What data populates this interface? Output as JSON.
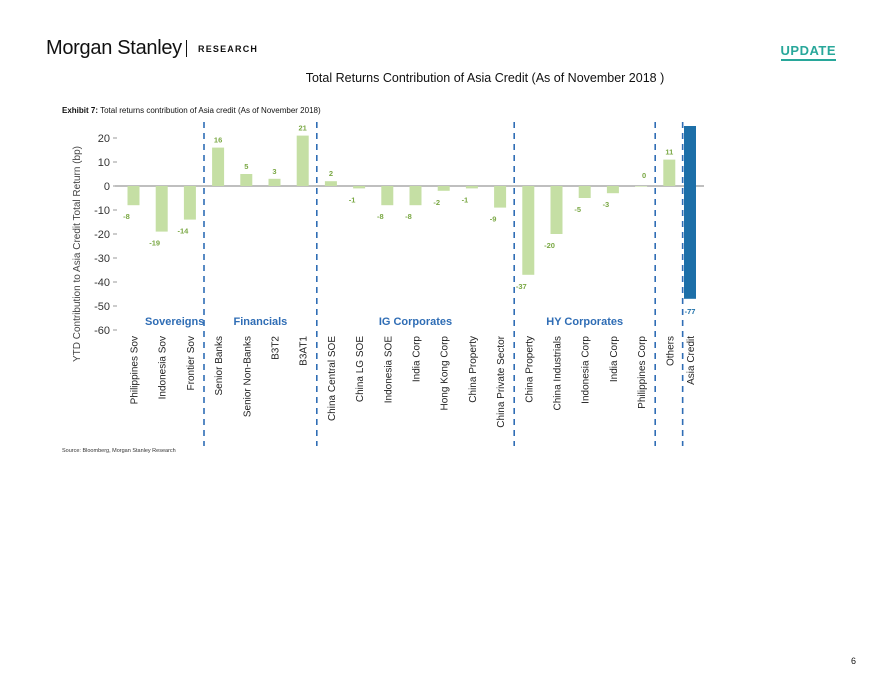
{
  "header": {
    "logo_text": "Morgan Stanley",
    "research_label": "RESEARCH",
    "update_badge": "UPDATE",
    "accent_color": "#28a79a"
  },
  "page_heading": "Total Returns Contribution of Asia Credit (As of November 2018 )",
  "exhibit": {
    "label": "Exhibit 7:",
    "title": "Total returns contribution of Asia credit (As of November 2018)"
  },
  "source": "Source: Bloomberg, Morgan Stanley Research",
  "page_number": "6",
  "chart_data": {
    "type": "bar",
    "ylabel": "YTD Contribution to Asia Credit Total Return (bp)",
    "ylim": [
      -60,
      25
    ],
    "yticks": [
      20,
      10,
      0,
      -10,
      -20,
      -30,
      -40,
      -50,
      -60
    ],
    "categories": [
      "Philippines Sov",
      "Indonesia Sov",
      "Frontier Sov",
      "Senior Banks",
      "Senior Non-Banks",
      "B3T2",
      "B3AT1",
      "China Central SOE",
      "China LG SOE",
      "Indonesia SOE",
      "India Corp",
      "Hong Kong Corp",
      "China Property",
      "China Private Sector",
      "China Property",
      "China Industrials",
      "Indonesia Corp",
      "India Corp",
      "Philippines Corp",
      "Others",
      "Asia Credit"
    ],
    "values": [
      -8,
      -19,
      -14,
      16,
      5,
      3,
      21,
      2,
      -1,
      -8,
      -8,
      -2,
      -1,
      -9,
      -37,
      -20,
      -5,
      -3,
      0,
      11,
      -77
    ],
    "data_labels": [
      "-8",
      "-19",
      "-14",
      "16",
      "5",
      "3",
      "21",
      "2",
      "-1",
      "-8",
      "-8",
      "-2",
      "-1",
      "-9",
      "-37",
      "-20",
      "-5",
      "-3",
      "0",
      "11",
      "-77"
    ],
    "groups": [
      {
        "name": "Sovereigns",
        "start": 0,
        "end": 2
      },
      {
        "name": "Financials",
        "start": 3,
        "end": 6
      },
      {
        "name": "IG Corporates",
        "start": 7,
        "end": 13
      },
      {
        "name": "HY Corporates",
        "start": 14,
        "end": 18
      }
    ],
    "separators_after_index": [
      2,
      6,
      13,
      18,
      19
    ],
    "colors": {
      "bar": "#c5dfa4",
      "total_bar": "#1d6fa8",
      "data_label": "#7aa844",
      "group_label": "#2f6db5",
      "separator": "#2f6db5",
      "axis": "#7f7f7f"
    },
    "grid": false
  }
}
